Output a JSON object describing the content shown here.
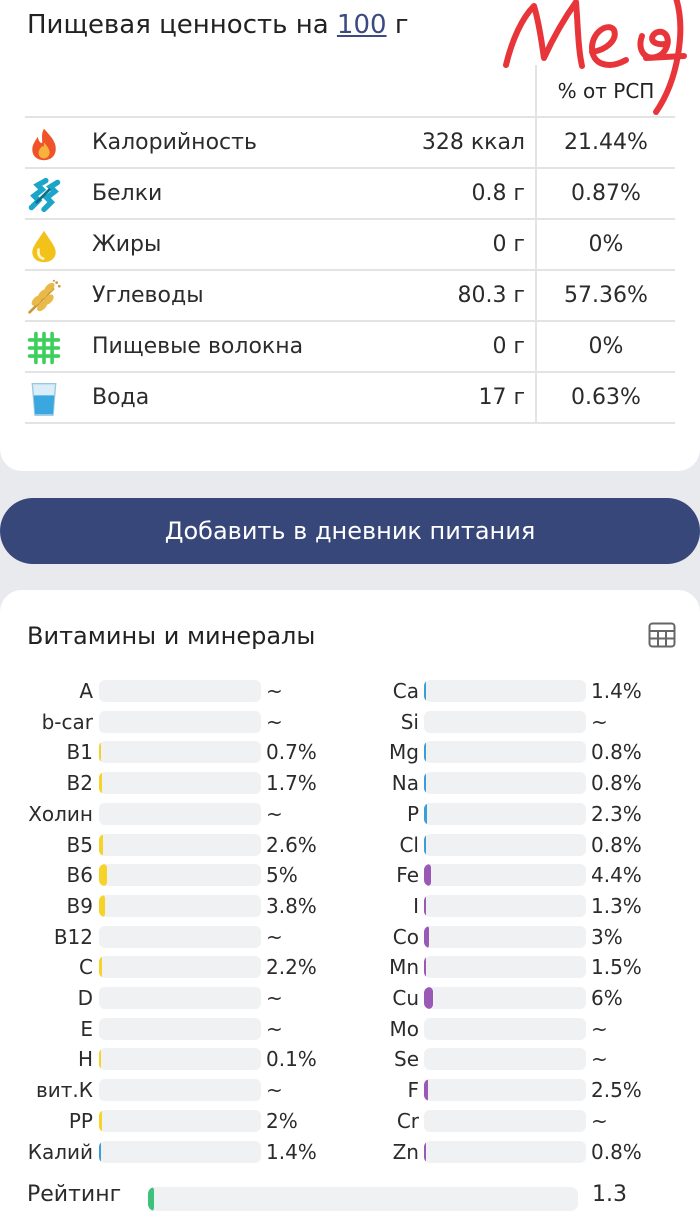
{
  "nutrition": {
    "title_prefix": "Пищевая ценность на",
    "amount": "100",
    "unit": "г",
    "stamp_text": "Мед",
    "pct_header": "% от РСП",
    "rows": [
      {
        "icon": "fire-icon",
        "name": "Калорийность",
        "value": "328 ккал",
        "pct": "21.44%"
      },
      {
        "icon": "protein-icon",
        "name": "Белки",
        "value": "0.8 г",
        "pct": "0.87%"
      },
      {
        "icon": "oil-drop-icon",
        "name": "Жиры",
        "value": "0 г",
        "pct": "0%"
      },
      {
        "icon": "wheat-icon",
        "name": "Углеводы",
        "value": "80.3 г",
        "pct": "57.36%"
      },
      {
        "icon": "fiber-icon",
        "name": "Пищевые волокна",
        "value": "0 г",
        "pct": "0%"
      },
      {
        "icon": "water-glass-icon",
        "name": "Вода",
        "value": "17 г",
        "pct": "0.63%"
      }
    ]
  },
  "add_button": {
    "label": "Добавить в дневник питания"
  },
  "vitamins": {
    "title": "Витамины и минералы",
    "icon": "table-view-icon",
    "colors": {
      "vitamin": "#f5d327",
      "light_mineral": "#3a9fd6",
      "heavy_mineral": "#9b59b6"
    },
    "left": [
      {
        "label": "A",
        "value": "~",
        "pct": 0
      },
      {
        "label": "b-car",
        "value": "~",
        "pct": 0
      },
      {
        "label": "B1",
        "value": "0.7%",
        "pct": 0.7
      },
      {
        "label": "B2",
        "value": "1.7%",
        "pct": 1.7
      },
      {
        "label": "Холин",
        "value": "~",
        "pct": 0
      },
      {
        "label": "B5",
        "value": "2.6%",
        "pct": 2.6
      },
      {
        "label": "B6",
        "value": "5%",
        "pct": 5
      },
      {
        "label": "B9",
        "value": "3.8%",
        "pct": 3.8
      },
      {
        "label": "B12",
        "value": "~",
        "pct": 0
      },
      {
        "label": "C",
        "value": "2.2%",
        "pct": 2.2
      },
      {
        "label": "D",
        "value": "~",
        "pct": 0
      },
      {
        "label": "E",
        "value": "~",
        "pct": 0
      },
      {
        "label": "H",
        "value": "0.1%",
        "pct": 0.1
      },
      {
        "label": "вит.К",
        "value": "~",
        "pct": 0
      },
      {
        "label": "PP",
        "value": "2%",
        "pct": 2
      },
      {
        "label": "Калий",
        "value": "1.4%",
        "pct": 1.4
      }
    ],
    "right": [
      {
        "label": "Ca",
        "value": "1.4%",
        "pct": 1.4
      },
      {
        "label": "Si",
        "value": "~",
        "pct": 0
      },
      {
        "label": "Mg",
        "value": "0.8%",
        "pct": 0.8
      },
      {
        "label": "Na",
        "value": "0.8%",
        "pct": 0.8
      },
      {
        "label": "P",
        "value": "2.3%",
        "pct": 2.3
      },
      {
        "label": "Cl",
        "value": "0.8%",
        "pct": 0.8
      },
      {
        "label": "Fe",
        "value": "4.4%",
        "pct": 4.4
      },
      {
        "label": "I",
        "value": "1.3%",
        "pct": 1.3
      },
      {
        "label": "Co",
        "value": "3%",
        "pct": 3
      },
      {
        "label": "Mn",
        "value": "1.5%",
        "pct": 1.5
      },
      {
        "label": "Cu",
        "value": "6%",
        "pct": 6
      },
      {
        "label": "Mo",
        "value": "~",
        "pct": 0
      },
      {
        "label": "Se",
        "value": "~",
        "pct": 0
      },
      {
        "label": "F",
        "value": "2.5%",
        "pct": 2.5
      },
      {
        "label": "Cr",
        "value": "~",
        "pct": 0
      },
      {
        "label": "Zn",
        "value": "0.8%",
        "pct": 0.8
      }
    ]
  },
  "rating": {
    "label": "Рейтинг",
    "value": "1.3",
    "fraction": 0.013
  }
}
